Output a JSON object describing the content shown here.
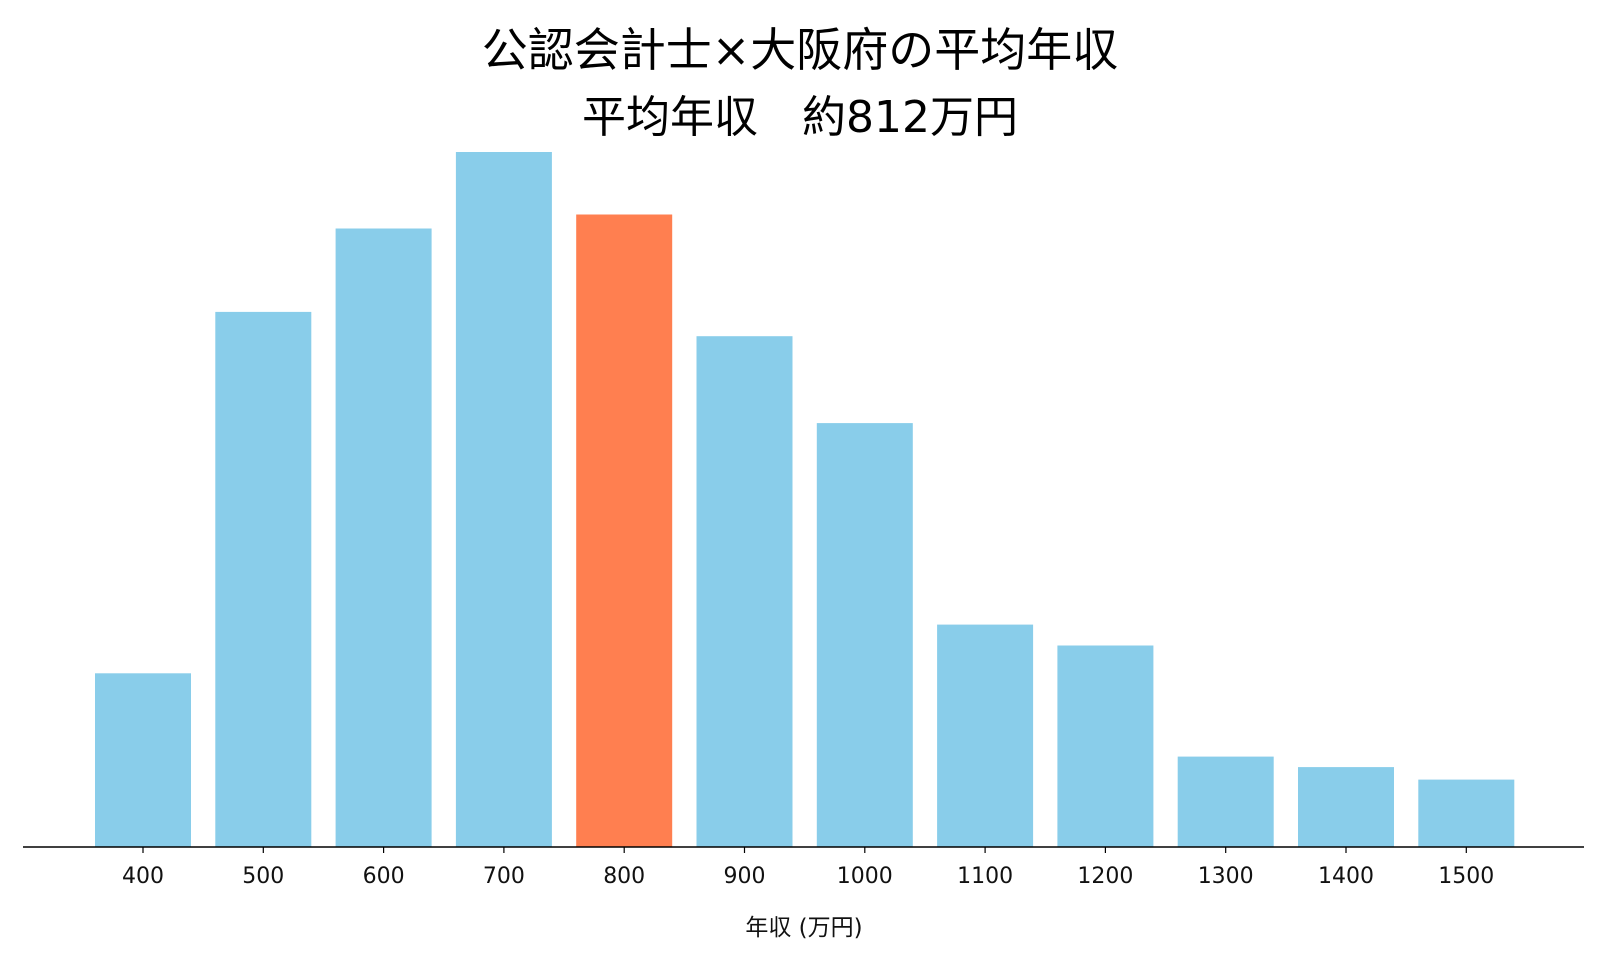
{
  "chart_data": {
    "type": "bar",
    "title": "公認会計士×大阪府の平均年収",
    "subtitle": "平均年収　約812万円",
    "xlabel": "年収 (万円)",
    "ylabel": "",
    "categories": [
      "400",
      "500",
      "600",
      "700",
      "800",
      "900",
      "1000",
      "1100",
      "1200",
      "1300",
      "1400",
      "1500"
    ],
    "values": [
      0.25,
      0.77,
      0.89,
      1.0,
      0.91,
      0.735,
      0.61,
      0.32,
      0.29,
      0.13,
      0.115,
      0.097
    ],
    "highlight_category": "800",
    "ylim": [
      0,
      1.0
    ],
    "grid": false,
    "legend": "none",
    "colors": {
      "bar": "#89CDEA",
      "highlight": "#FF7F50",
      "axis": "#000000"
    }
  }
}
